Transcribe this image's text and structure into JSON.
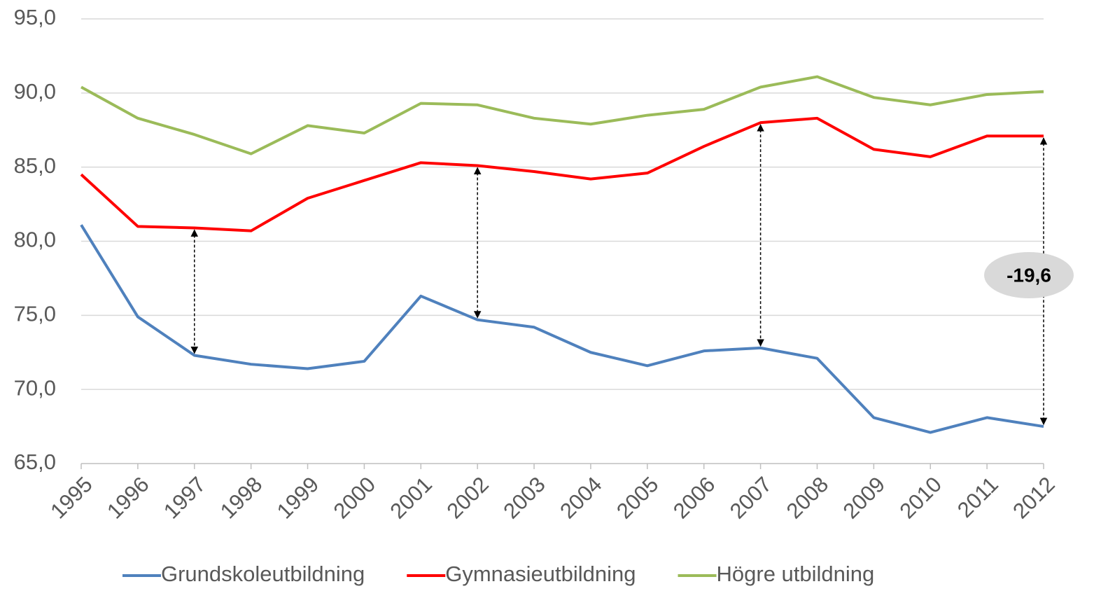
{
  "chart_data": {
    "type": "line",
    "categories": [
      "1995",
      "1996",
      "1997",
      "1998",
      "1999",
      "2000",
      "2001",
      "2002",
      "2003",
      "2004",
      "2005",
      "2006",
      "2007",
      "2008",
      "2009",
      "2010",
      "2011",
      "2012"
    ],
    "series": [
      {
        "name": "Grundskoleutbildning",
        "color": "#4f81bd",
        "values": [
          81.1,
          74.9,
          72.3,
          71.7,
          71.4,
          71.9,
          76.3,
          74.7,
          74.2,
          72.5,
          71.6,
          72.6,
          72.8,
          72.1,
          68.1,
          67.1,
          68.1,
          67.5
        ]
      },
      {
        "name": "Gymnasieutbildning",
        "color": "#ff0000",
        "values": [
          84.5,
          81.0,
          80.9,
          80.7,
          82.9,
          84.1,
          85.3,
          85.1,
          84.7,
          84.2,
          84.6,
          86.4,
          88.0,
          88.3,
          86.2,
          85.7,
          87.1,
          87.1
        ]
      },
      {
        "name": "Högre utbildning",
        "color": "#9bbb59",
        "values": [
          90.4,
          88.3,
          87.2,
          85.9,
          87.8,
          87.3,
          89.3,
          89.2,
          88.3,
          87.9,
          88.5,
          88.9,
          90.4,
          91.1,
          89.7,
          89.2,
          89.9,
          90.1
        ]
      }
    ],
    "ylim": [
      65,
      95
    ],
    "yticks": [
      {
        "value": 65,
        "label": "65,0"
      },
      {
        "value": 70,
        "label": "70,0"
      },
      {
        "value": 75,
        "label": "75,0"
      },
      {
        "value": 80,
        "label": "80,0"
      },
      {
        "value": 85,
        "label": "85,0"
      },
      {
        "value": 90,
        "label": "90,0"
      },
      {
        "value": 95,
        "label": "95,0"
      }
    ],
    "grid": true,
    "legend": "bottom",
    "annotation": "-19,6"
  }
}
